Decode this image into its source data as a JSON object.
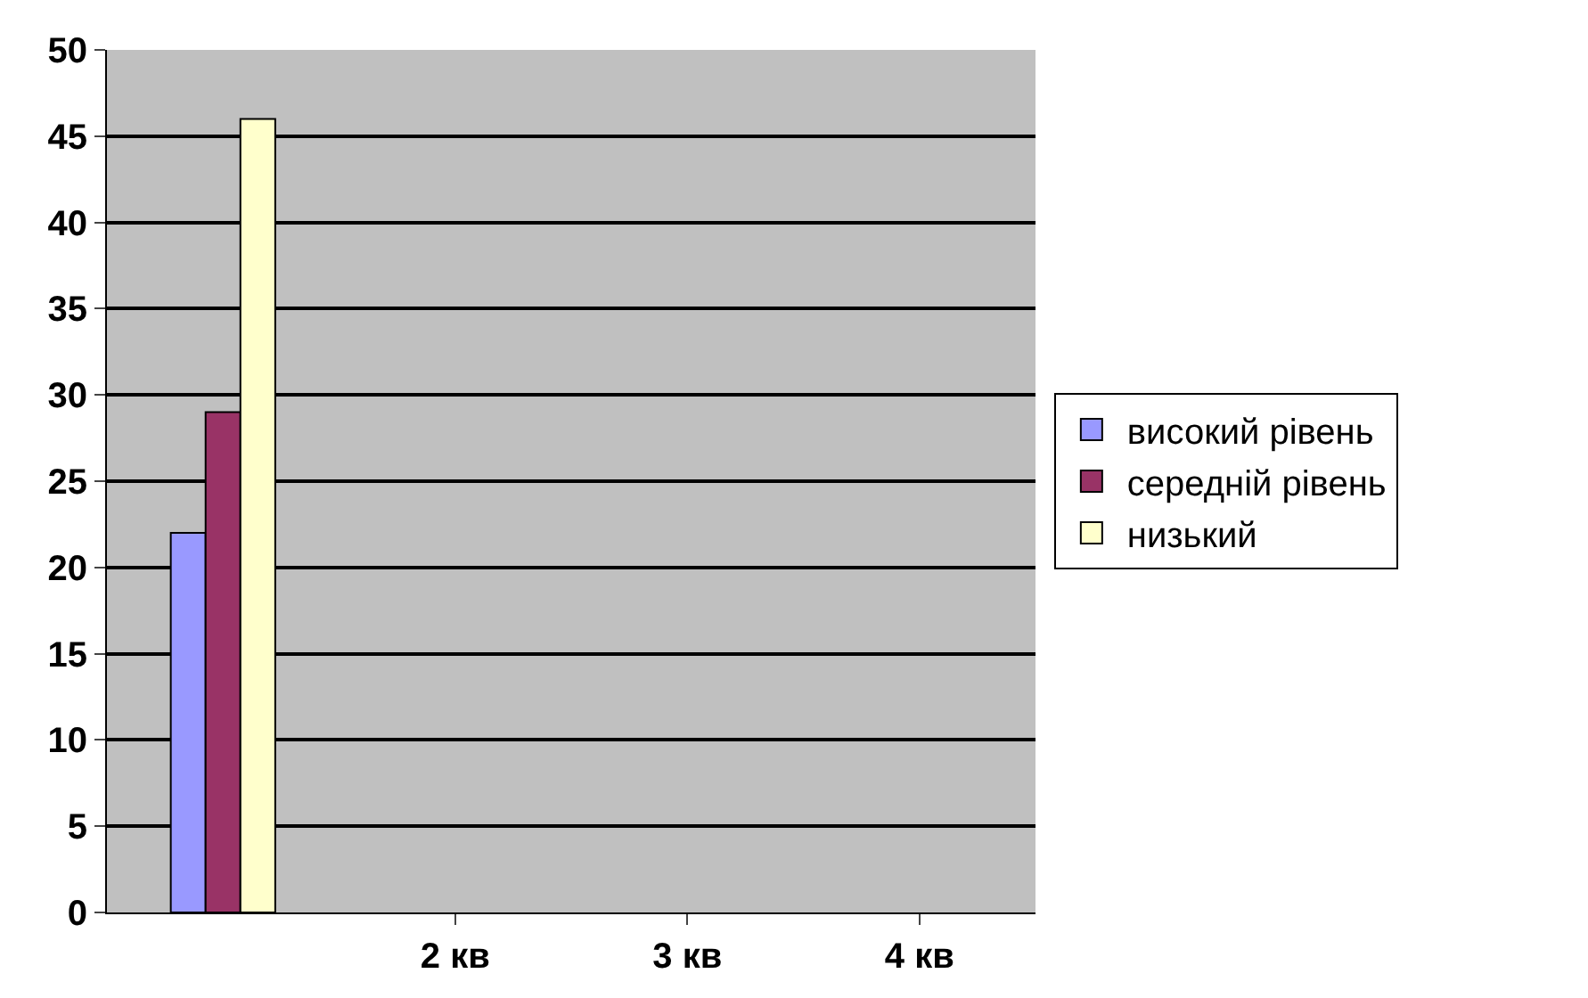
{
  "chart_data": {
    "type": "bar",
    "categories": [
      null,
      "2 кв",
      "3 кв",
      "4 кв"
    ],
    "series": [
      {
        "name": "високий рівень",
        "color": "#9999ff",
        "values": [
          22,
          null,
          null,
          null
        ]
      },
      {
        "name": "середній рівень",
        "color": "#993366",
        "values": [
          29,
          null,
          null,
          null
        ]
      },
      {
        "name": "низький",
        "color": "#ffffcc",
        "values": [
          46,
          null,
          null,
          null
        ]
      }
    ],
    "ylim": [
      0,
      50
    ],
    "yticks": [
      0,
      5,
      10,
      15,
      20,
      25,
      30,
      35,
      40,
      45,
      50
    ],
    "grid": "y",
    "legend": "right"
  }
}
